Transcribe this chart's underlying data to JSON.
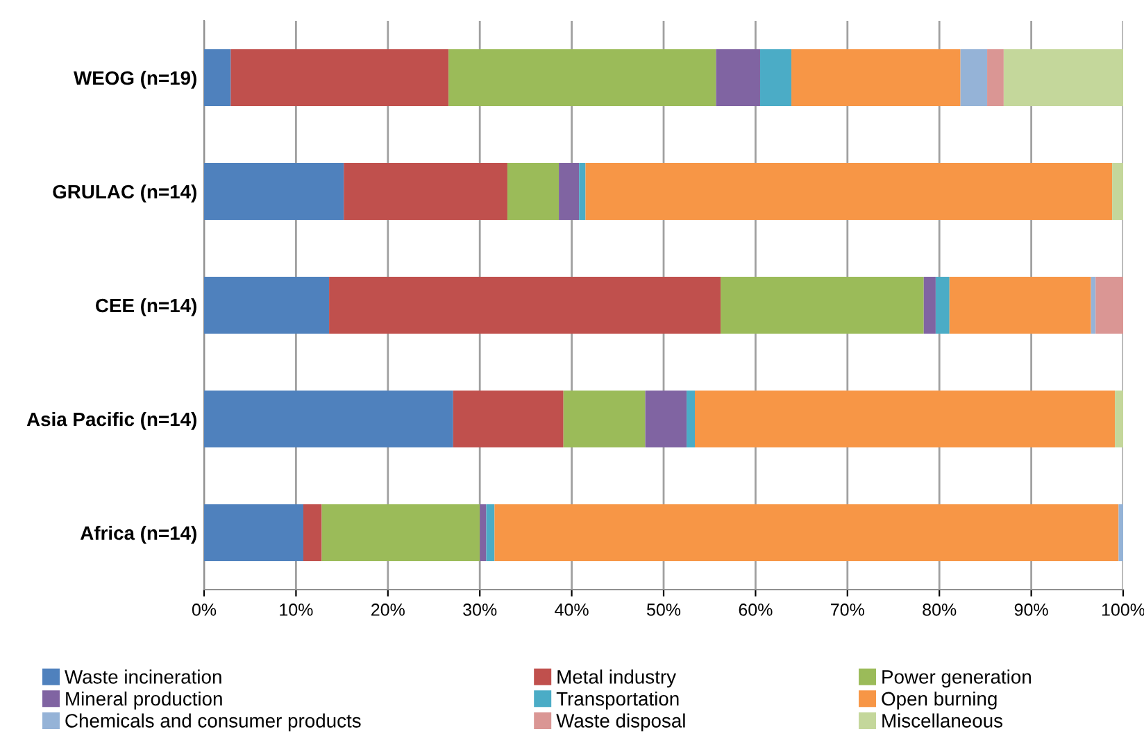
{
  "chart_data": {
    "type": "bar",
    "orientation": "horizontal",
    "stacked": true,
    "categories": [
      "WEOG (n=19)",
      "GRULAC (n=14)",
      "CEE (n=14)",
      "Asia Pacific (n=14)",
      "Africa (n=14)"
    ],
    "series": [
      {
        "name": "Waste incineration",
        "color": "#4f81bd",
        "values": [
          2.9,
          15.2,
          13.6,
          27.1,
          10.8
        ]
      },
      {
        "name": "Metal industry",
        "color": "#c0504d",
        "values": [
          23.7,
          17.8,
          42.6,
          12.0,
          2.0
        ]
      },
      {
        "name": "Power generation",
        "color": "#9bbb59",
        "values": [
          29.1,
          5.6,
          22.1,
          8.9,
          17.2
        ]
      },
      {
        "name": "Mineral production",
        "color": "#8064a2",
        "values": [
          4.8,
          2.2,
          1.3,
          4.5,
          0.7
        ]
      },
      {
        "name": "Transportation",
        "color": "#4bacc6",
        "values": [
          3.4,
          0.7,
          1.5,
          0.9,
          0.9
        ]
      },
      {
        "name": "Open burning",
        "color": "#f79646",
        "values": [
          18.4,
          57.3,
          15.4,
          45.7,
          67.9
        ]
      },
      {
        "name": "Chemicals and consumer products",
        "color": "#95b3d7",
        "values": [
          2.9,
          0,
          0.5,
          0,
          0.5
        ]
      },
      {
        "name": "Waste disposal",
        "color": "#da9694",
        "values": [
          1.8,
          0,
          3.0,
          0,
          0
        ]
      },
      {
        "name": "Miscellaneous",
        "color": "#c4d79b",
        "values": [
          13.0,
          1.2,
          0,
          0.9,
          null
        ]
      }
    ],
    "xlim": [
      0,
      100
    ],
    "xticks": [
      {
        "value": 0,
        "label": "0%"
      },
      {
        "value": 10,
        "label": "10%"
      },
      {
        "value": 20,
        "label": "20%"
      },
      {
        "value": 30,
        "label": "30%"
      },
      {
        "value": 40,
        "label": "40%"
      },
      {
        "value": 50,
        "label": "50%"
      },
      {
        "value": 60,
        "label": "60%"
      },
      {
        "value": 70,
        "label": "70%"
      },
      {
        "value": 80,
        "label": "80%"
      },
      {
        "value": 90,
        "label": "90%"
      },
      {
        "value": 100,
        "label": "100%"
      }
    ],
    "grid": "x",
    "legend": "bottom"
  }
}
